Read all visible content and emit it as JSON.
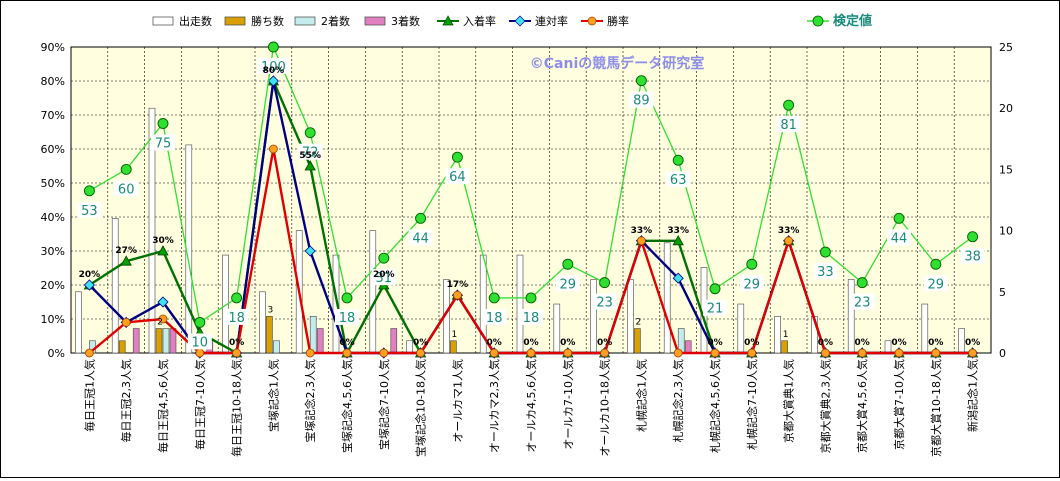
{
  "chart_data": {
    "type": "bar",
    "watermark": "©Caniの競馬データ研究室",
    "categories": [
      "毎日王冠1人気",
      "毎日王冠2,3人気",
      "毎日王冠4,5,6人気",
      "毎日王冠7-10人気",
      "毎日王冠10-18人気",
      "宝塚記念1人気",
      "宝塚記念2,3人気",
      "宝塚記念4,5,6人気",
      "宝塚記念7-10人気",
      "宝塚記念10-18人気",
      "オールカマ1人気",
      "オールカマ2,3人気",
      "オールカ4,5,6人気",
      "オールカ7-10人気",
      "オールカ10-18人気",
      "札幌記念1人気",
      "札幌記念2,3人気",
      "札幌記念4,5,6人気",
      "札幌記念7-10人気",
      "京都大賞典1人気",
      "京都大賞典2,3人気",
      "京都大賞4,5,6人気",
      "京都大賞7-10人気",
      "京都大賞10-18人気",
      "新潟記念1人気"
    ],
    "left_axis": {
      "min": 0,
      "max": 0.9,
      "ticks": [
        "0%",
        "10%",
        "20%",
        "30%",
        "40%",
        "50%",
        "60%",
        "70%",
        "80%",
        "90%"
      ]
    },
    "right_axis": {
      "min": 0,
      "max": 25,
      "ticks": [
        "0",
        "5",
        "10",
        "15",
        "20",
        "25"
      ]
    },
    "bar_series": [
      {
        "name": "出走数",
        "color": "#ffffff",
        "values": [
          5,
          11,
          20,
          17,
          8,
          5,
          10,
          8,
          10,
          1,
          6,
          8,
          8,
          4,
          6,
          6,
          9,
          7,
          4,
          3,
          3,
          6,
          1,
          4,
          2
        ]
      },
      {
        "name": "勝ち数",
        "color": "#d9a000",
        "values": [
          0,
          1,
          2,
          0,
          0,
          3,
          0,
          0,
          0,
          0,
          1,
          0,
          0,
          0,
          0,
          2,
          0,
          0,
          0,
          1,
          0,
          0,
          0,
          0,
          0
        ]
      },
      {
        "name": "2着数",
        "color": "#c4ecec",
        "values": [
          1,
          0,
          2,
          0,
          0,
          1,
          3,
          0,
          0,
          0,
          0,
          0,
          0,
          0,
          0,
          0,
          2,
          0,
          0,
          0,
          0,
          0,
          0,
          0,
          0
        ]
      },
      {
        "name": "3着数",
        "color": "#e080c0",
        "values": [
          0,
          2,
          2,
          1,
          0,
          0,
          2,
          0,
          2,
          0,
          0,
          0,
          0,
          0,
          0,
          0,
          1,
          0,
          0,
          0,
          0,
          0,
          0,
          0,
          0
        ]
      }
    ],
    "line_series": [
      {
        "name": "入着率",
        "color": "#007000",
        "values": [
          0.2,
          0.27,
          0.3,
          0.06,
          0,
          0.8,
          0.55,
          0,
          0.2,
          0,
          0.17,
          0,
          0,
          0,
          0,
          0.33,
          0.33,
          0,
          0,
          0.33,
          0,
          0,
          0,
          0,
          0
        ]
      },
      {
        "name": "連対率",
        "color": "#000080",
        "values": [
          0.2,
          0.09,
          0.15,
          0,
          0,
          0.8,
          0.3,
          0,
          0,
          0,
          0.17,
          0,
          0,
          0,
          0,
          0.33,
          0.22,
          0,
          0,
          0.33,
          0,
          0,
          0,
          0,
          0
        ]
      },
      {
        "name": "勝率",
        "color": "#e00000",
        "values": [
          0,
          0.09,
          0.1,
          0,
          0,
          0.6,
          0,
          0,
          0,
          0,
          0.17,
          0,
          0,
          0,
          0,
          0.33,
          0,
          0,
          0,
          0.33,
          0,
          0,
          0,
          0,
          0
        ]
      },
      {
        "name": "検定値",
        "color": "#30e030",
        "values": [
          53,
          60,
          75,
          10,
          18,
          100,
          72,
          18,
          31,
          44,
          64,
          18,
          18,
          29,
          23,
          89,
          63,
          21,
          29,
          81,
          33,
          23,
          44,
          29,
          38
        ]
      }
    ],
    "rate_labels": [
      "20%",
      "27%",
      "30%",
      "",
      "0%",
      "80%",
      "55%",
      "0%",
      "20%",
      "0%",
      "17%",
      "0%",
      "0%",
      "0%",
      "0%",
      "33%",
      "33%",
      "0%",
      "0%",
      "33%",
      "0%",
      "0%",
      "0%",
      "0%",
      "0%"
    ],
    "win_labels": [
      "",
      "",
      "2",
      "",
      "",
      "3",
      "",
      "",
      "",
      "",
      "1",
      "",
      "",
      "",
      "",
      "2",
      "",
      "",
      "",
      "1",
      "",
      "",
      "",
      "",
      ""
    ],
    "kentei_labels": [
      "53",
      "60",
      "75",
      "10",
      "18",
      "100",
      "72",
      "18",
      "31",
      "44",
      "64",
      "18",
      "18",
      "29",
      "23",
      "89",
      "63",
      "21",
      "29",
      "81",
      "33",
      "23",
      "44",
      "29",
      "38"
    ]
  }
}
